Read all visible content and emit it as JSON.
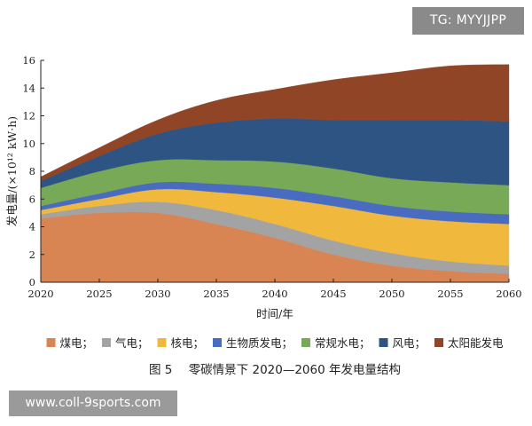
{
  "chart_data": {
    "type": "area",
    "stacked": true,
    "x": [
      2020,
      2025,
      2030,
      2035,
      2040,
      2045,
      2050,
      2055,
      2060
    ],
    "xlabel": "时间/年",
    "ylabel": "发电量/(×10¹² kW·h)",
    "ylim": [
      0,
      16
    ],
    "xlim": [
      2020,
      2060
    ],
    "yticks": [
      0,
      2,
      4,
      6,
      8,
      10,
      12,
      14,
      16
    ],
    "xticks": [
      2020,
      2025,
      2030,
      2035,
      2040,
      2045,
      2050,
      2055,
      2060
    ],
    "grid": false,
    "legend_position": "bottom",
    "series": [
      {
        "name": "煤电；",
        "color": "#d98553",
        "values": [
          4.6,
          5.0,
          5.0,
          4.2,
          3.2,
          2.0,
          1.2,
          0.8,
          0.6
        ]
      },
      {
        "name": "气电；",
        "color": "#a3a3a3",
        "values": [
          0.3,
          0.5,
          0.8,
          1.0,
          1.0,
          1.0,
          0.9,
          0.7,
          0.6
        ]
      },
      {
        "name": "核电；",
        "color": "#f0b93e",
        "values": [
          0.3,
          0.5,
          0.9,
          1.3,
          1.9,
          2.5,
          2.7,
          2.9,
          3.0
        ]
      },
      {
        "name": "生物质发电；",
        "color": "#4a6cc0",
        "values": [
          0.3,
          0.4,
          0.5,
          0.6,
          0.7,
          0.7,
          0.7,
          0.7,
          0.7
        ]
      },
      {
        "name": "常规水电；",
        "color": "#77a956",
        "values": [
          1.3,
          1.6,
          1.6,
          1.7,
          1.9,
          2.0,
          2.0,
          2.1,
          2.1
        ]
      },
      {
        "name": "风电；",
        "color": "#2e5484",
        "values": [
          0.5,
          1.1,
          1.9,
          2.7,
          3.1,
          3.5,
          4.2,
          4.5,
          4.6
        ]
      },
      {
        "name": "太阳能发电",
        "color": "#8f4526",
        "values": [
          0.3,
          0.6,
          1.0,
          1.6,
          2.1,
          2.9,
          3.4,
          3.9,
          4.1
        ]
      }
    ]
  },
  "caption": {
    "figure_label": "图 5",
    "title": "零碳情景下 2020—2060 年发电量结构"
  },
  "watermarks": {
    "top_right": "TG: MYYJJPP",
    "bottom_left": "www.coll-9sports.com"
  }
}
